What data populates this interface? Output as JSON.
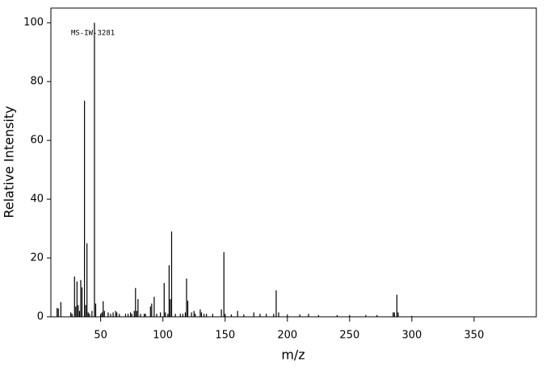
{
  "chart_data": {
    "type": "stem",
    "annotation": "MS-IW-3281",
    "xlabel": "m/z",
    "ylabel": "Relative Intensity",
    "color": "#000000",
    "xlim": [
      10,
      400
    ],
    "ylim": [
      0,
      105
    ],
    "xticks": [
      50,
      100,
      150,
      200,
      250,
      300,
      350
    ],
    "yticks": [
      0,
      20,
      40,
      60,
      80,
      100
    ],
    "x": [
      15,
      16,
      18,
      26,
      27,
      29,
      30,
      31,
      32,
      33,
      34,
      35,
      37,
      38,
      39,
      40,
      41,
      43,
      45,
      46,
      50,
      51,
      52,
      53,
      56,
      58,
      60,
      62,
      63,
      65,
      70,
      72,
      74,
      75,
      77,
      78,
      79,
      80,
      82,
      85,
      86,
      90,
      91,
      93,
      95,
      98,
      101,
      102,
      104,
      105,
      106,
      107,
      110,
      114,
      116,
      118,
      119,
      120,
      123,
      125,
      126,
      130,
      131,
      133,
      135,
      140,
      147,
      149,
      150,
      155,
      160,
      165,
      173,
      178,
      183,
      189,
      191,
      193,
      200,
      210,
      217,
      225,
      240,
      250,
      263,
      272,
      285,
      286,
      288,
      289,
      300
    ],
    "values": [
      3,
      2.8,
      5,
      1.5,
      1,
      13.7,
      3.5,
      12,
      4,
      2,
      12.5,
      10,
      73.5,
      4,
      25,
      1.5,
      1,
      2,
      100,
      4.5,
      1,
      1.5,
      5.3,
      2,
      1.5,
      1,
      1.5,
      2,
      1.5,
      1,
      1,
      1,
      1.5,
      1,
      2,
      9.8,
      2,
      6,
      1,
      1,
      1,
      3.5,
      4.5,
      6.8,
      1,
      1.5,
      11.5,
      1.5,
      1,
      17.5,
      6,
      29,
      1,
      1,
      1,
      1.5,
      13,
      5.5,
      1.5,
      2,
      1,
      2.5,
      1.5,
      1,
      1,
      1,
      2.5,
      22,
      1,
      0.8,
      2,
      0.8,
      1.5,
      1,
      1,
      1,
      9,
      1.5,
      0.8,
      0.8,
      1,
      0.6,
      0.6,
      0.6,
      0.6,
      0.6,
      1.5,
      1.5,
      7.5,
      1.5,
      0.3
    ]
  }
}
